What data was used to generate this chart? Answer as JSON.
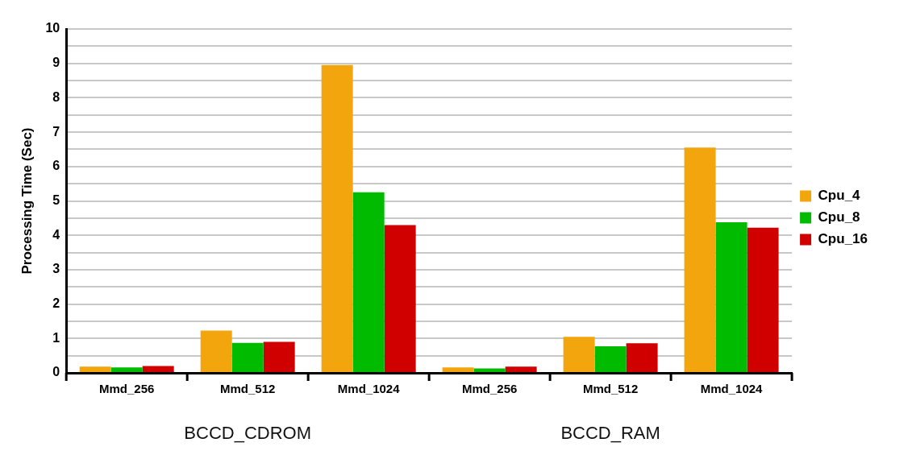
{
  "chart_data": {
    "type": "bar",
    "ylabel": "Processing Time (Sec)",
    "categories": [
      "Mmd_256",
      "Mmd_512",
      "Mmd_1024",
      "Mmd_256",
      "Mmd_512",
      "Mmd_1024"
    ],
    "series": [
      {
        "name": "Cpu_4",
        "color": "#f2a50c",
        "values": [
          0.18,
          1.23,
          8.95,
          0.16,
          1.05,
          6.55
        ]
      },
      {
        "name": "Cpu_8",
        "color": "#00bb00",
        "values": [
          0.16,
          0.87,
          5.25,
          0.13,
          0.77,
          4.38
        ]
      },
      {
        "name": "Cpu_16",
        "color": "#d00000",
        "values": [
          0.2,
          0.9,
          4.3,
          0.18,
          0.86,
          4.22
        ]
      }
    ],
    "annotations": [
      "BCCD_CDROM",
      "BCCD_RAM"
    ],
    "ylim": [
      0,
      10
    ],
    "yticks": [
      0,
      {
        "value": 0.5,
        "label": null
      },
      1,
      {
        "value": 1.5,
        "label": null
      },
      2,
      {
        "value": 2.5,
        "label": null
      },
      3,
      {
        "value": 3.5,
        "label": null
      },
      4,
      {
        "value": 4.5,
        "label": null
      },
      5,
      {
        "value": 5.5,
        "label": null
      },
      6,
      {
        "value": 6.5,
        "label": null
      },
      7,
      {
        "value": 7.5,
        "label": null
      },
      8,
      {
        "value": 8.5,
        "label": null
      },
      9,
      {
        "value": 9.5,
        "label": null
      },
      10
    ],
    "grid": "y",
    "legend": "right"
  }
}
